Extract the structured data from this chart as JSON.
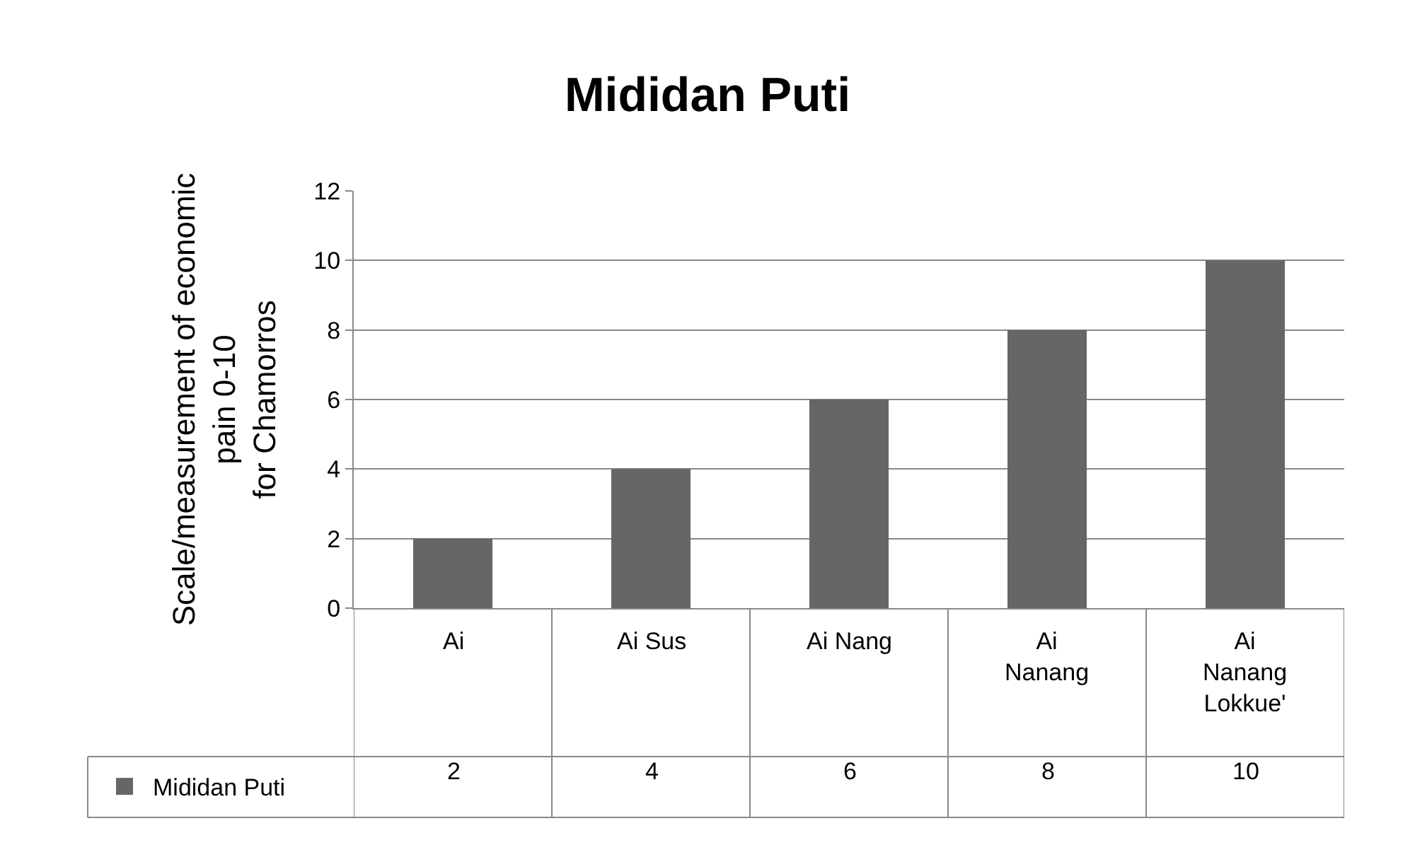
{
  "chart_data": {
    "type": "bar",
    "title": "Mididan Puti",
    "ylabel": "Scale/measurement of economic\npain 0-10\nfor Chamorros",
    "categories": [
      "Ai",
      "Ai Sus",
      "Ai Nang",
      "Ai Nanang",
      "Ai Nanang Lokkue'"
    ],
    "series": [
      {
        "name": "Mididan Puti",
        "color": "#666666",
        "values": [
          2,
          4,
          6,
          8,
          10
        ]
      }
    ],
    "ylim": [
      0,
      12
    ],
    "yticks": [
      0,
      2,
      4,
      6,
      8,
      10,
      12
    ],
    "grid": "y",
    "legend": "bottom left",
    "data_labels": true
  }
}
